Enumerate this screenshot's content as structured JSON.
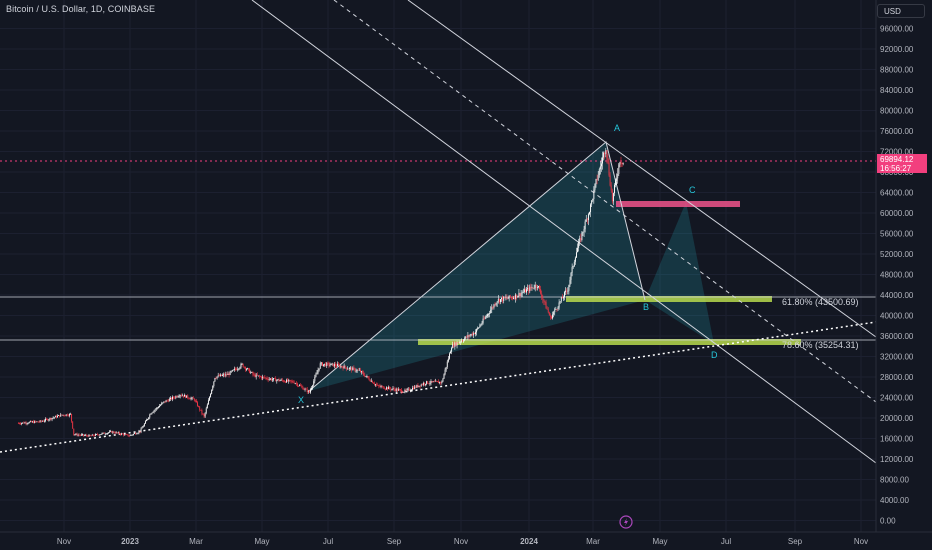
{
  "header": {
    "title": "Bitcoin / U.S. Dollar, 1D, COINBASE",
    "currency": "USD"
  },
  "price_label": {
    "value": "69894.12",
    "countdown": "16:56:27"
  },
  "pattern_points": [
    "X",
    "A",
    "B",
    "C",
    "D"
  ],
  "fib_labels": [
    "61.80% (43500.69)",
    "78.60% (35254.31)"
  ],
  "colors": {
    "background": "#131722",
    "up": "#089981",
    "down": "#f23645",
    "pattern": "#26c6da",
    "zone_green": "#b7d94c",
    "zone_pink": "#f0548b",
    "price_line": "#f23f7e"
  },
  "chart_data": {
    "type": "line",
    "title": "Bitcoin / U.S. Dollar, 1D, COINBASE",
    "x_ticks": [
      "Nov",
      "2023",
      "Mar",
      "May",
      "Jul",
      "Sep",
      "Nov",
      "2024",
      "Mar",
      "May",
      "Jul",
      "Sep",
      "Nov"
    ],
    "y_ticks": [
      "96000.00",
      "92000.00",
      "88000.00",
      "84000.00",
      "80000.00",
      "76000.00",
      "72000.00",
      "68000.00",
      "64000.00",
      "60000.00",
      "56000.00",
      "52000.00",
      "48000.00",
      "44000.00",
      "40000.00",
      "36000.00",
      "32000.00",
      "28000.00",
      "24000.00",
      "20000.00",
      "16000.00",
      "12000.00",
      "8000.00",
      "4000.00",
      "0.00"
    ],
    "ylim": [
      0,
      98000
    ],
    "series": [
      {
        "values": [
          [
            "2022-09-20",
            19000
          ],
          [
            "2022-10-10",
            19300
          ],
          [
            "2022-10-30",
            20600
          ],
          [
            "2022-11-07",
            20700
          ],
          [
            "2022-11-10",
            16800
          ],
          [
            "2022-11-25",
            16500
          ],
          [
            "2022-12-15",
            17300
          ],
          [
            "2022-12-31",
            16550
          ],
          [
            "2023-01-10",
            17400
          ],
          [
            "2023-01-20",
            21000
          ],
          [
            "2023-02-01",
            23100
          ],
          [
            "2023-02-16",
            24600
          ],
          [
            "2023-03-01",
            23600
          ],
          [
            "2023-03-10",
            20200
          ],
          [
            "2023-03-20",
            28000
          ],
          [
            "2023-04-01",
            28500
          ],
          [
            "2023-04-14",
            30400
          ],
          [
            "2023-04-25",
            28300
          ],
          [
            "2023-05-10",
            27600
          ],
          [
            "2023-06-01",
            27000
          ],
          [
            "2023-06-15",
            25000
          ],
          [
            "2023-06-25",
            30500
          ],
          [
            "2023-07-10",
            30300
          ],
          [
            "2023-07-31",
            29200
          ],
          [
            "2023-08-17",
            26200
          ],
          [
            "2023-09-11",
            25200
          ],
          [
            "2023-09-30",
            26900
          ],
          [
            "2023-10-15",
            27000
          ],
          [
            "2023-10-24",
            34000
          ],
          [
            "2023-11-15",
            36800
          ],
          [
            "2023-12-05",
            43000
          ],
          [
            "2023-12-20",
            43600
          ],
          [
            "2024-01-11",
            46000
          ],
          [
            "2024-01-23",
            39500
          ],
          [
            "2024-02-08",
            45200
          ],
          [
            "2024-02-15",
            51800
          ],
          [
            "2024-02-29",
            61300
          ],
          [
            "2024-03-05",
            66000
          ],
          [
            "2024-03-14",
            73000
          ],
          [
            "2024-03-20",
            62500
          ],
          [
            "2024-03-27",
            70500
          ],
          [
            "2024-03-30",
            69894
          ]
        ]
      }
    ]
  }
}
